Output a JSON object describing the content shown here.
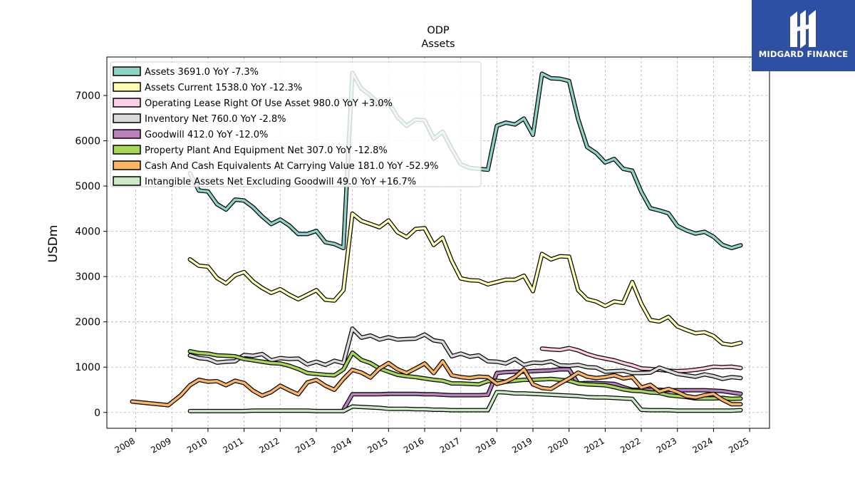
{
  "brand": {
    "name": "MIDGARD FINANCE",
    "color": "#2f4fa3"
  },
  "chart_data": {
    "type": "line",
    "title": "ODP",
    "subtitle": "Assets",
    "ylabel": "USDm",
    "xlabel": "",
    "xlim": [
      2007.2,
      2025.55
    ],
    "ylim": [
      -350,
      7850
    ],
    "xticks": [
      2008,
      2009,
      2010,
      2011,
      2012,
      2013,
      2014,
      2015,
      2016,
      2017,
      2018,
      2019,
      2020,
      2021,
      2022,
      2023,
      2024,
      2025
    ],
    "yticks": [
      0,
      1000,
      2000,
      3000,
      4000,
      5000,
      6000,
      7000
    ],
    "grid": true,
    "legend_position": "top-left",
    "series": [
      {
        "name": "Assets",
        "legend": "Assets  3691.0 YoY -7.3%",
        "color": "#8dd3c7",
        "x": [
          2009.5,
          2009.75,
          2010.0,
          2010.25,
          2010.5,
          2010.75,
          2011.0,
          2011.25,
          2011.5,
          2011.75,
          2012.0,
          2012.25,
          2012.5,
          2012.75,
          2013.0,
          2013.25,
          2013.5,
          2013.75,
          2014.0,
          2014.25,
          2014.5,
          2014.75,
          2015.0,
          2015.25,
          2015.5,
          2015.75,
          2016.0,
          2016.25,
          2016.5,
          2016.75,
          2017.0,
          2017.25,
          2017.5,
          2017.75,
          2018.0,
          2018.25,
          2018.5,
          2018.75,
          2019.0,
          2019.25,
          2019.5,
          2019.75,
          2020.0,
          2020.25,
          2020.5,
          2020.75,
          2021.0,
          2021.25,
          2021.5,
          2021.75,
          2022.0,
          2022.25,
          2022.5,
          2022.75,
          2023.0,
          2023.25,
          2023.5,
          2023.75,
          2024.0,
          2024.25,
          2024.5,
          2024.75
        ],
        "y": [
          5280,
          4900,
          4880,
          4600,
          4480,
          4700,
          4680,
          4530,
          4330,
          4160,
          4260,
          4130,
          3940,
          3940,
          4010,
          3760,
          3720,
          3630,
          7500,
          7150,
          7000,
          6800,
          6850,
          6520,
          6330,
          6470,
          6450,
          6050,
          6200,
          5820,
          5480,
          5400,
          5380,
          5360,
          6330,
          6400,
          6360,
          6490,
          6130,
          7480,
          7380,
          7370,
          7320,
          6480,
          5860,
          5730,
          5520,
          5600,
          5380,
          5340,
          4870,
          4510,
          4460,
          4400,
          4120,
          4020,
          3950,
          3990,
          3880,
          3700,
          3630,
          3691
        ]
      },
      {
        "name": "Assets Current",
        "legend": "Assets Current  1538.0 YoY -12.3%",
        "color": "#ffffb3",
        "x": [
          2009.5,
          2009.75,
          2010.0,
          2010.25,
          2010.5,
          2010.75,
          2011.0,
          2011.25,
          2011.5,
          2011.75,
          2012.0,
          2012.25,
          2012.5,
          2012.75,
          2013.0,
          2013.25,
          2013.5,
          2013.75,
          2014.0,
          2014.25,
          2014.5,
          2014.75,
          2015.0,
          2015.25,
          2015.5,
          2015.75,
          2016.0,
          2016.25,
          2016.5,
          2016.75,
          2017.0,
          2017.25,
          2017.5,
          2017.75,
          2018.0,
          2018.25,
          2018.5,
          2018.75,
          2019.0,
          2019.25,
          2019.5,
          2019.75,
          2020.0,
          2020.25,
          2020.5,
          2020.75,
          2021.0,
          2021.25,
          2021.5,
          2021.75,
          2022.0,
          2022.25,
          2022.5,
          2022.75,
          2023.0,
          2023.25,
          2023.5,
          2023.75,
          2024.0,
          2024.25,
          2024.5,
          2024.75
        ],
        "y": [
          3380,
          3240,
          3220,
          2970,
          2850,
          3030,
          3100,
          2890,
          2750,
          2640,
          2720,
          2600,
          2500,
          2600,
          2700,
          2490,
          2470,
          2700,
          4390,
          4230,
          4160,
          4090,
          4240,
          3980,
          3870,
          4050,
          4070,
          3700,
          3860,
          3350,
          2960,
          2920,
          2910,
          2830,
          2880,
          2930,
          2930,
          3020,
          2680,
          3500,
          3380,
          3450,
          3440,
          2700,
          2500,
          2450,
          2350,
          2450,
          2420,
          2880,
          2400,
          2040,
          2010,
          2110,
          1900,
          1820,
          1750,
          1770,
          1690,
          1520,
          1490,
          1538
        ]
      },
      {
        "name": "Operating Lease Right Of Use Asset",
        "legend": "Operating Lease Right Of Use Asset  980.0 YoY +3.0%",
        "color": "#fccde5",
        "x": [
          2019.25,
          2019.5,
          2019.75,
          2020.0,
          2020.25,
          2020.5,
          2020.75,
          2021.0,
          2021.25,
          2021.5,
          2021.75,
          2022.0,
          2022.25,
          2022.5,
          2022.75,
          2023.0,
          2023.25,
          2023.5,
          2023.75,
          2024.0,
          2024.25,
          2024.5,
          2024.75
        ],
        "y": [
          1410,
          1390,
          1380,
          1420,
          1370,
          1290,
          1230,
          1190,
          1150,
          1090,
          1040,
          970,
          960,
          940,
          920,
          910,
          920,
          940,
          970,
          1010,
          1000,
          1010,
          980
        ]
      },
      {
        "name": "Inventory Net",
        "legend": "Inventory Net  760.0 YoY -2.8%",
        "color": "#d9d9d9",
        "x": [
          2009.5,
          2009.75,
          2010.0,
          2010.25,
          2010.5,
          2010.75,
          2011.0,
          2011.25,
          2011.5,
          2011.75,
          2012.0,
          2012.25,
          2012.5,
          2012.75,
          2013.0,
          2013.25,
          2013.5,
          2013.75,
          2014.0,
          2014.25,
          2014.5,
          2014.75,
          2015.0,
          2015.25,
          2015.5,
          2015.75,
          2016.0,
          2016.25,
          2016.5,
          2016.75,
          2017.0,
          2017.25,
          2017.5,
          2017.75,
          2018.0,
          2018.25,
          2018.5,
          2018.75,
          2019.0,
          2019.25,
          2019.5,
          2019.75,
          2020.0,
          2020.25,
          2020.5,
          2020.75,
          2021.0,
          2021.25,
          2021.5,
          2021.75,
          2022.0,
          2022.25,
          2022.5,
          2022.75,
          2023.0,
          2023.25,
          2023.5,
          2023.75,
          2024.0,
          2024.25,
          2024.5,
          2024.75
        ],
        "y": [
          1260,
          1200,
          1180,
          1100,
          1120,
          1130,
          1270,
          1250,
          1290,
          1150,
          1200,
          1180,
          1190,
          1060,
          1120,
          1050,
          1140,
          1090,
          1850,
          1650,
          1700,
          1610,
          1660,
          1610,
          1620,
          1630,
          1720,
          1590,
          1560,
          1240,
          1300,
          1230,
          1260,
          1130,
          1120,
          1080,
          1180,
          1050,
          1100,
          1090,
          1130,
          1040,
          1030,
          1050,
          1000,
          990,
          900,
          910,
          920,
          870,
          870,
          880,
          990,
          920,
          850,
          820,
          790,
          840,
          800,
          740,
          780,
          760
        ]
      },
      {
        "name": "Goodwill",
        "legend": "Goodwill  412.0 YoY -12.0%",
        "color": "#bc80bd",
        "x": [
          2013.75,
          2014.0,
          2014.25,
          2014.5,
          2014.75,
          2015.0,
          2015.25,
          2015.5,
          2015.75,
          2016.0,
          2016.25,
          2016.5,
          2016.75,
          2017.0,
          2017.25,
          2017.5,
          2017.75,
          2018.0,
          2018.25,
          2018.5,
          2018.75,
          2019.0,
          2019.25,
          2019.5,
          2019.75,
          2020.0,
          2020.25,
          2020.5,
          2020.75,
          2021.0,
          2021.25,
          2021.5,
          2021.75,
          2022.0,
          2022.25,
          2022.5,
          2022.75,
          2023.0,
          2023.25,
          2023.5,
          2023.75,
          2024.0,
          2024.25,
          2024.5,
          2024.75
        ],
        "y": [
          60,
          400,
          400,
          400,
          400,
          410,
          410,
          410,
          410,
          400,
          400,
          390,
          380,
          380,
          380,
          380,
          390,
          870,
          890,
          900,
          900,
          910,
          920,
          930,
          950,
          950,
          640,
          650,
          650,
          640,
          630,
          560,
          500,
          500,
          500,
          500,
          490,
          490,
          490,
          490,
          490,
          480,
          470,
          440,
          412
        ]
      },
      {
        "name": "Property Plant And Equipment Net",
        "legend": "Property Plant And Equipment Net  307.0 YoY -12.8%",
        "color": "#a6d854",
        "x": [
          2009.5,
          2009.75,
          2010.0,
          2010.25,
          2010.5,
          2010.75,
          2011.0,
          2011.25,
          2011.5,
          2011.75,
          2012.0,
          2012.25,
          2012.5,
          2012.75,
          2013.0,
          2013.25,
          2013.5,
          2013.75,
          2014.0,
          2014.25,
          2014.5,
          2014.75,
          2015.0,
          2015.25,
          2015.5,
          2015.75,
          2016.0,
          2016.25,
          2016.5,
          2016.75,
          2017.0,
          2017.25,
          2017.5,
          2017.75,
          2018.0,
          2018.25,
          2018.5,
          2018.75,
          2019.0,
          2019.25,
          2019.5,
          2019.75,
          2020.0,
          2020.25,
          2020.5,
          2020.75,
          2021.0,
          2021.25,
          2021.5,
          2021.75,
          2022.0,
          2022.25,
          2022.5,
          2022.75,
          2023.0,
          2023.25,
          2023.5,
          2023.75,
          2024.0,
          2024.25,
          2024.5,
          2024.75
        ],
        "y": [
          1350,
          1310,
          1300,
          1260,
          1250,
          1240,
          1180,
          1150,
          1120,
          1090,
          1080,
          1030,
          960,
          870,
          850,
          830,
          820,
          950,
          1320,
          1160,
          1090,
          970,
          900,
          830,
          800,
          780,
          750,
          720,
          700,
          640,
          640,
          630,
          620,
          690,
          700,
          680,
          700,
          720,
          720,
          730,
          740,
          720,
          700,
          640,
          620,
          610,
          600,
          560,
          510,
          480,
          470,
          440,
          430,
          380,
          360,
          340,
          310,
          310,
          310,
          320,
          300,
          307
        ]
      },
      {
        "name": "Cash And Cash Equivalents At Carrying Value",
        "legend": "Cash And Cash Equivalents At Carrying Value  181.0 YoY -52.9%",
        "color": "#fdb462",
        "x": [
          2007.9,
          2008.9,
          2009.25,
          2009.5,
          2009.75,
          2010.0,
          2010.25,
          2010.5,
          2010.75,
          2011.0,
          2011.25,
          2011.5,
          2011.75,
          2012.0,
          2012.25,
          2012.5,
          2012.75,
          2013.0,
          2013.25,
          2013.5,
          2013.75,
          2014.0,
          2014.25,
          2014.5,
          2014.75,
          2015.0,
          2015.25,
          2015.5,
          2015.75,
          2016.0,
          2016.25,
          2016.5,
          2016.75,
          2017.0,
          2017.25,
          2017.5,
          2017.75,
          2018.0,
          2018.25,
          2018.5,
          2018.75,
          2019.0,
          2019.25,
          2019.5,
          2019.75,
          2020.0,
          2020.25,
          2020.5,
          2020.75,
          2021.0,
          2021.25,
          2021.5,
          2021.75,
          2022.0,
          2022.25,
          2022.5,
          2022.75,
          2023.0,
          2023.25,
          2023.5,
          2023.75,
          2024.0,
          2024.25,
          2024.5,
          2024.75
        ],
        "y": [
          240,
          160,
          380,
          600,
          720,
          680,
          690,
          600,
          700,
          650,
          480,
          370,
          450,
          590,
          490,
          400,
          660,
          720,
          590,
          500,
          740,
          940,
          880,
          770,
          970,
          1090,
          950,
          870,
          970,
          1080,
          870,
          1130,
          820,
          780,
          760,
          790,
          780,
          630,
          680,
          780,
          950,
          620,
          540,
          520,
          640,
          750,
          880,
          790,
          760,
          780,
          820,
          750,
          780,
          550,
          610,
          460,
          520,
          450,
          360,
          330,
          380,
          410,
          280,
          181,
          181
        ]
      },
      {
        "name": "Intangible Assets Net Excluding Goodwill",
        "legend": "Intangible Assets Net Excluding Goodwill  49.0 YoY +16.7%",
        "color": "#ccebc5",
        "x": [
          2009.5,
          2009.75,
          2010.0,
          2010.25,
          2010.5,
          2010.75,
          2011.0,
          2011.25,
          2011.5,
          2011.75,
          2012.0,
          2012.25,
          2012.5,
          2012.75,
          2013.0,
          2013.25,
          2013.5,
          2013.75,
          2014.0,
          2014.25,
          2014.5,
          2014.75,
          2015.0,
          2015.25,
          2015.5,
          2015.75,
          2016.0,
          2016.25,
          2016.5,
          2016.75,
          2017.0,
          2017.25,
          2017.5,
          2017.75,
          2018.0,
          2018.25,
          2018.5,
          2018.75,
          2019.0,
          2019.25,
          2019.5,
          2019.75,
          2020.0,
          2020.25,
          2020.5,
          2020.75,
          2021.0,
          2021.25,
          2021.5,
          2021.75,
          2022.0,
          2022.25,
          2022.5,
          2022.75,
          2023.0,
          2023.25,
          2023.5,
          2023.75,
          2024.0,
          2024.25,
          2024.5,
          2024.75
        ],
        "y": [
          30,
          30,
          30,
          30,
          30,
          30,
          30,
          40,
          40,
          40,
          40,
          40,
          40,
          40,
          30,
          30,
          30,
          30,
          130,
          120,
          110,
          100,
          80,
          80,
          80,
          70,
          70,
          60,
          60,
          50,
          50,
          50,
          50,
          50,
          450,
          440,
          420,
          420,
          410,
          400,
          390,
          380,
          370,
          360,
          340,
          330,
          330,
          320,
          310,
          300,
          60,
          50,
          50,
          50,
          40,
          40,
          40,
          40,
          40,
          40,
          40,
          49
        ]
      }
    ]
  }
}
